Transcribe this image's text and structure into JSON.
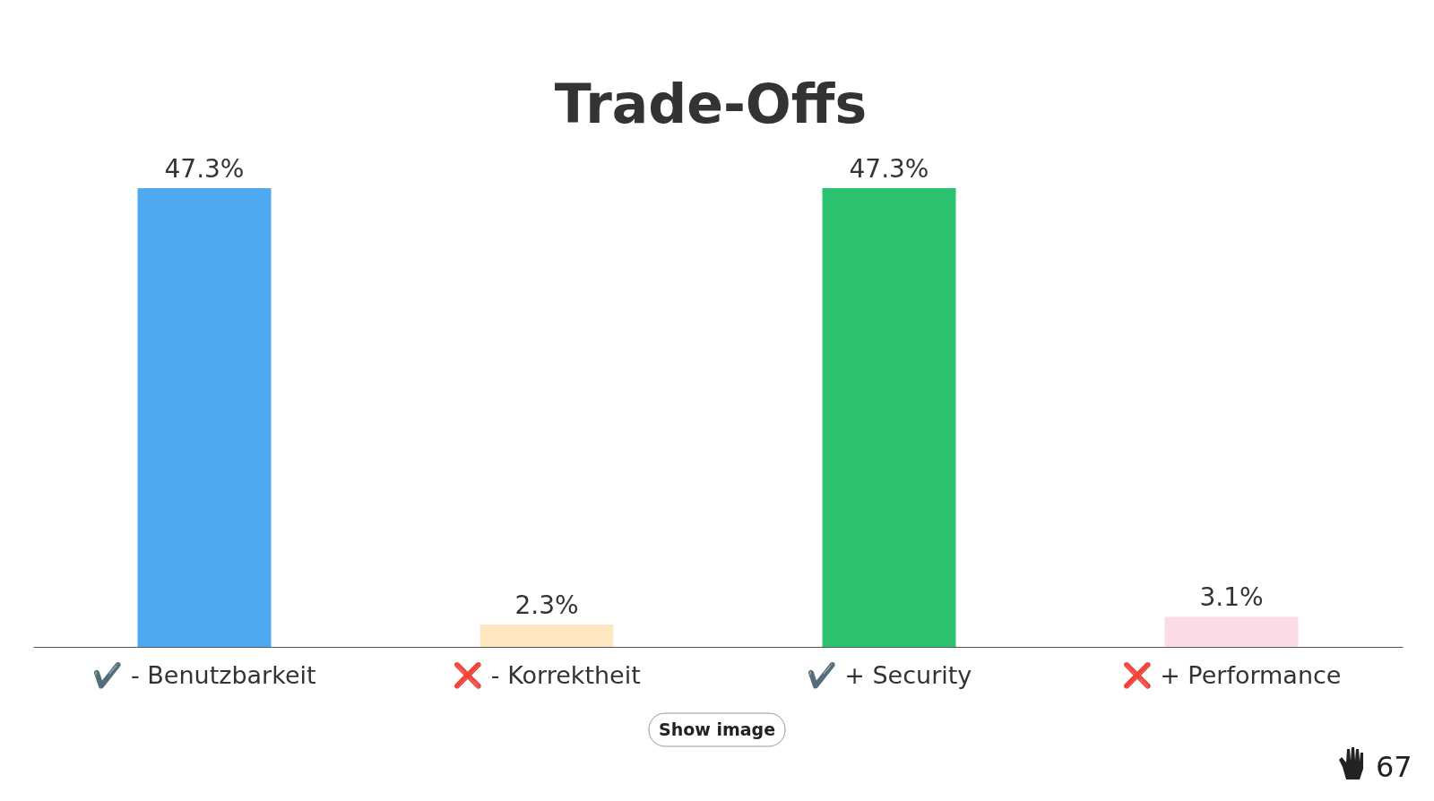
{
  "chart_data": {
    "type": "bar",
    "title": "Trade-Offs",
    "categories": [
      "✔️ - Benutzbarkeit",
      "❌ - Korrektheit",
      "✔️ + Security",
      "❌ + Performance"
    ],
    "values": [
      47.3,
      2.3,
      47.3,
      3.1
    ],
    "colors": [
      "#4fa9f0",
      "#fde8c2",
      "#2bc36f",
      "#fcdbe8"
    ],
    "value_labels": [
      "47.3%",
      "2.3%",
      "47.3%",
      "3.1%"
    ],
    "annotations": [
      "Show image",
      "67"
    ]
  }
}
